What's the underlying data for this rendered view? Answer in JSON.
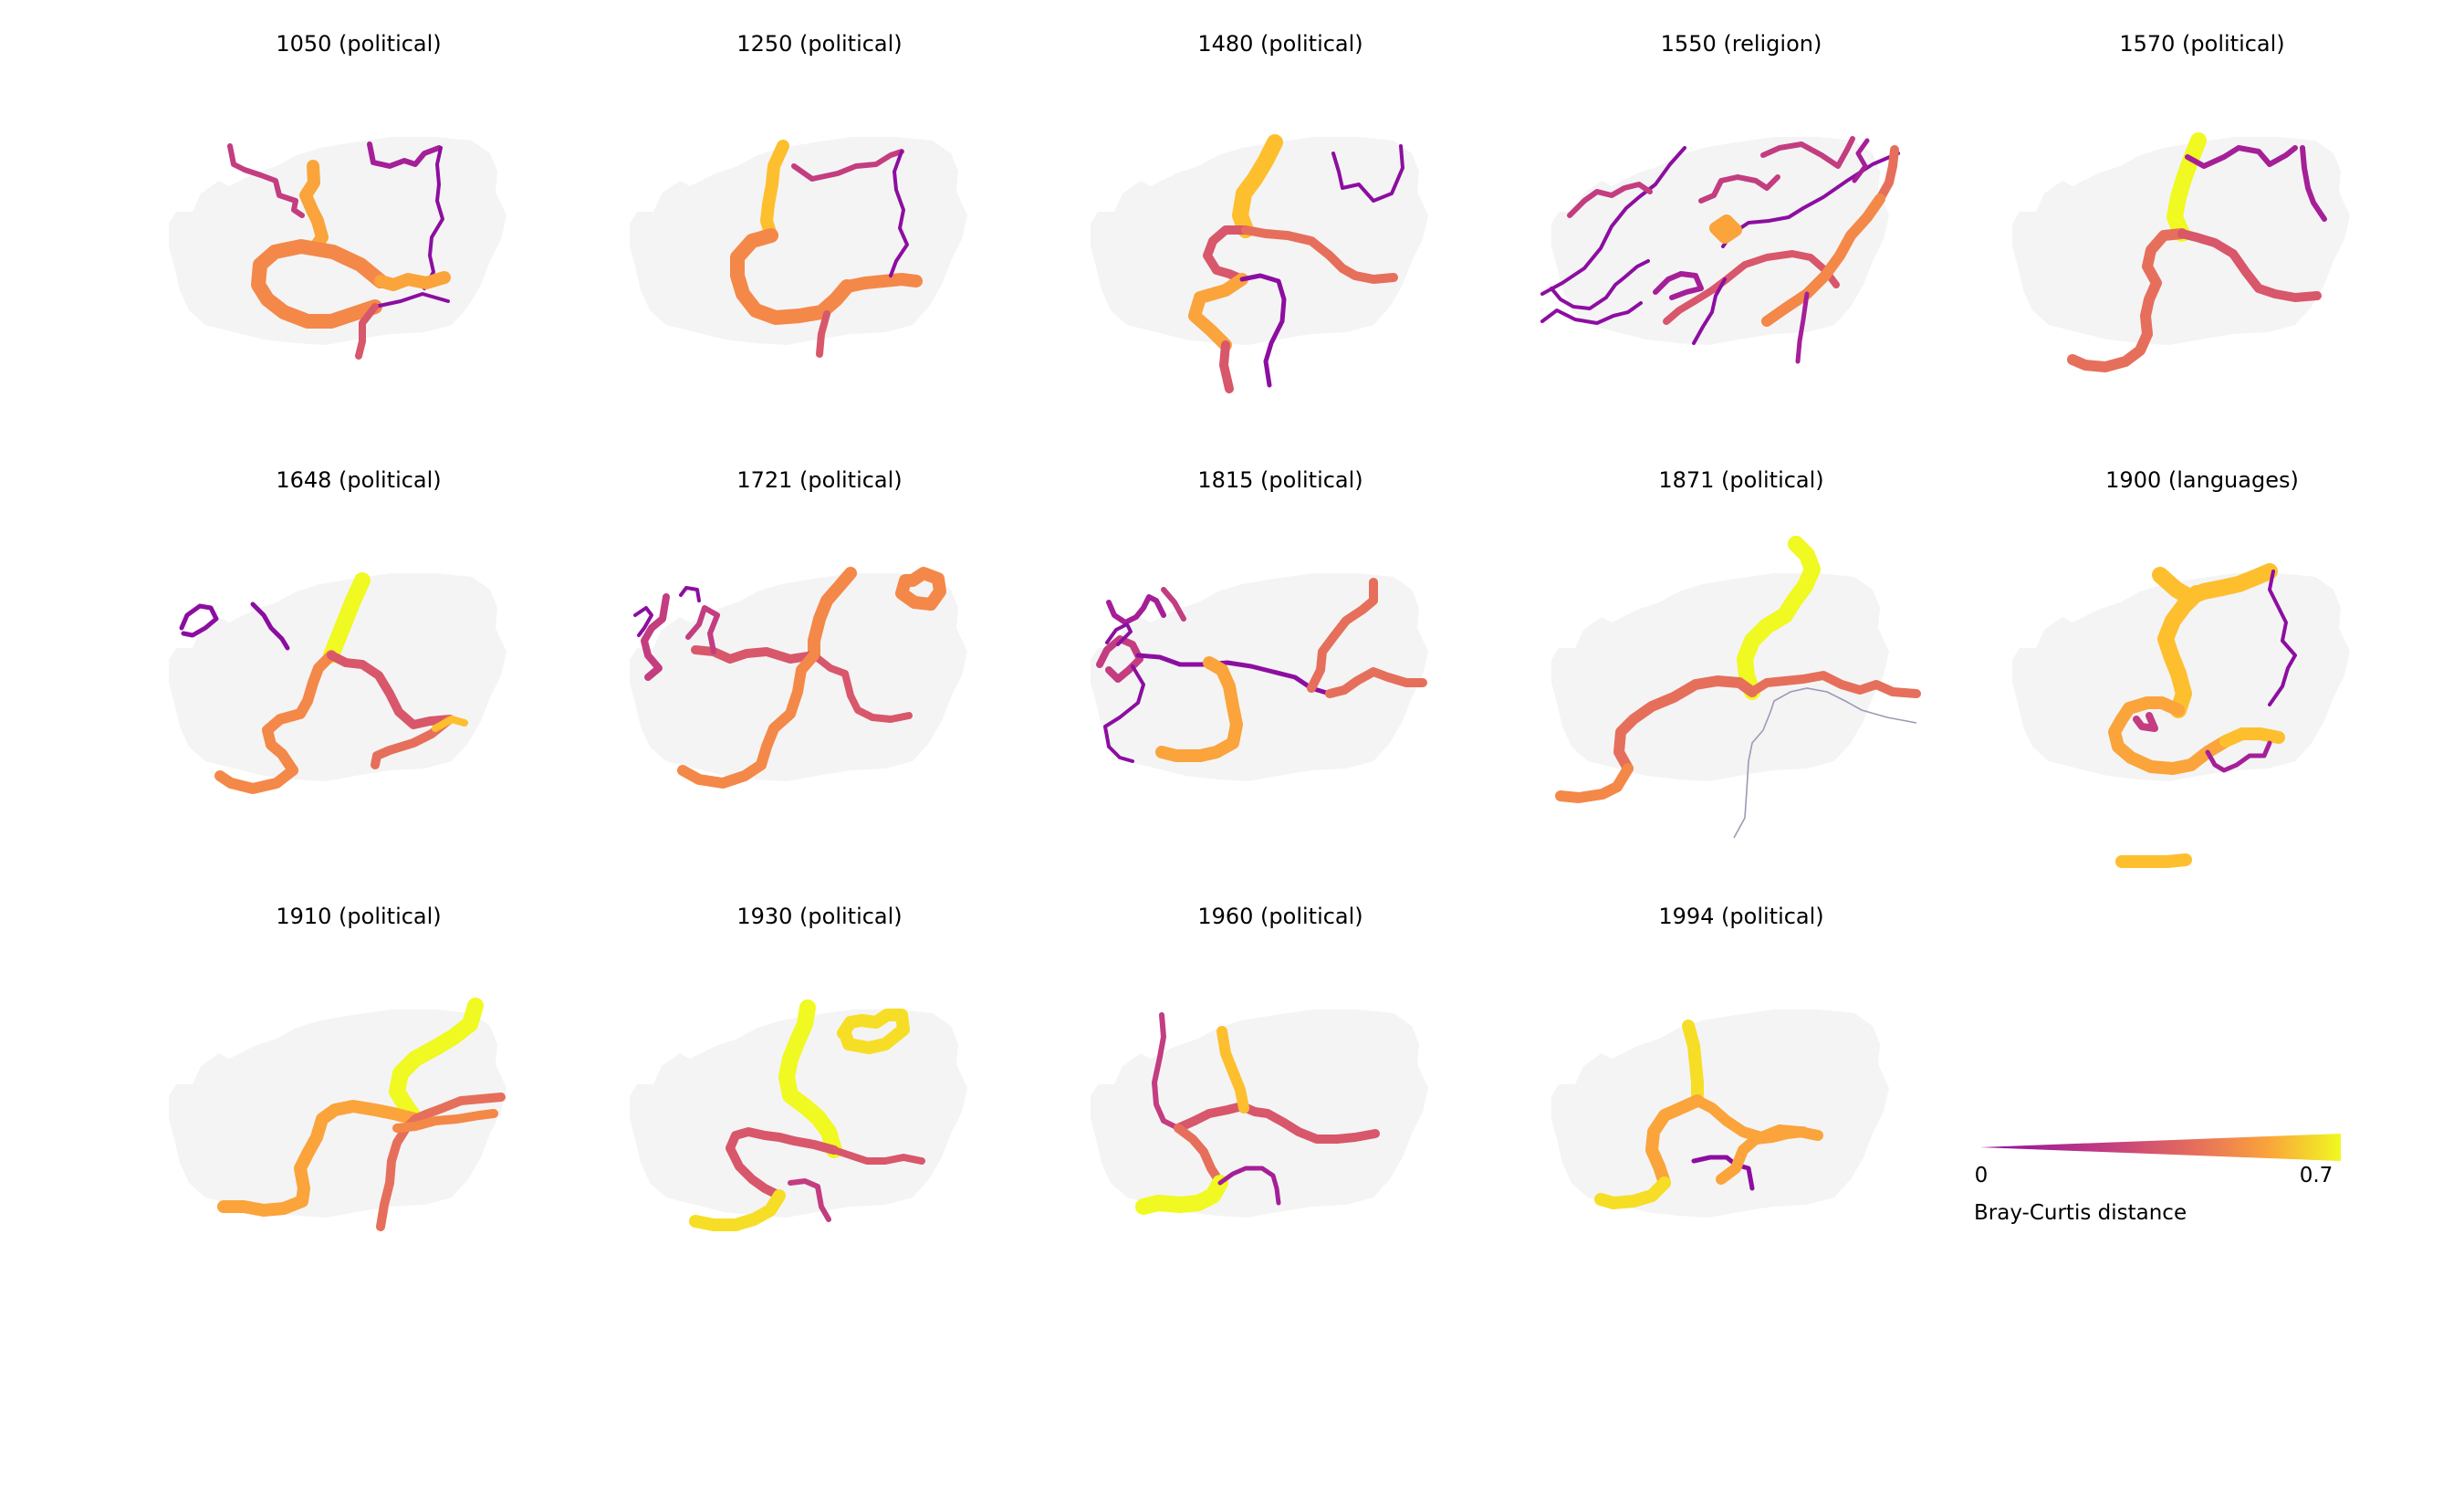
{
  "panels": [
    {
      "title": "1050 (political)"
    },
    {
      "title": "1250 (political)"
    },
    {
      "title": "1480 (political)"
    },
    {
      "title": "1550 (religion)"
    },
    {
      "title": "1570 (political)"
    },
    {
      "title": "1648 (political)"
    },
    {
      "title": "1721 (political)"
    },
    {
      "title": "1815 (political)"
    },
    {
      "title": "1871 (political)"
    },
    {
      "title": "1900 (languages)"
    },
    {
      "title": "1910 (political)"
    },
    {
      "title": "1930 (political)"
    },
    {
      "title": "1960 (political)"
    },
    {
      "title": "1994 (political)"
    }
  ],
  "colorbar": {
    "min_label": "0",
    "max_label": "0.7",
    "title": "Bray-Curtis distance",
    "min": 0,
    "max": 0.7,
    "colormap": "plasma",
    "colors": [
      "#8c0ea0",
      "#a51f97",
      "#c33d80",
      "#d8576b",
      "#e66f5b",
      "#f48849",
      "#faa43b",
      "#fdbf2d",
      "#f6de26",
      "#f0f921"
    ]
  },
  "colors": {
    "land": "#f4f4f5",
    "river": "#9a9ab4"
  }
}
